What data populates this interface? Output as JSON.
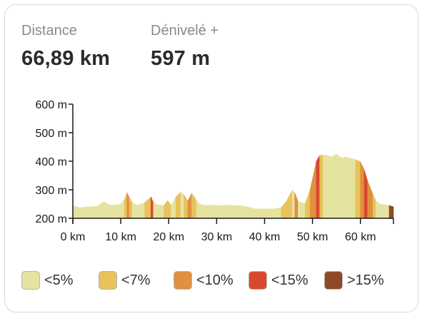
{
  "stats": {
    "distance_label": "Distance",
    "distance_value": "66,89 km",
    "elevation_gain_label": "Dénivelé +",
    "elevation_gain_value": "597 m"
  },
  "legend": [
    {
      "label": "<5%",
      "color": "#e6e3a1"
    },
    {
      "label": "<7%",
      "color": "#e8c25a"
    },
    {
      "label": "<10%",
      "color": "#e0903e"
    },
    {
      "label": "<15%",
      "color": "#d9482e"
    },
    {
      "label": ">15%",
      "color": "#8e4a26"
    }
  ],
  "chart_data": {
    "type": "area",
    "xlabel": "",
    "ylabel": "",
    "xlim": [
      0,
      66.89
    ],
    "ylim": [
      200,
      600
    ],
    "x_ticks": [
      0,
      10,
      20,
      30,
      40,
      50,
      60
    ],
    "x_tick_labels": [
      "0 km",
      "10 km",
      "20 km",
      "30 km",
      "40 km",
      "50 km",
      "60 km"
    ],
    "y_ticks": [
      200,
      300,
      400,
      500,
      600
    ],
    "y_tick_labels": [
      "200 m",
      "300 m",
      "400 m",
      "500 m",
      "600 m"
    ],
    "grid": false,
    "series": [
      {
        "x": [
          0,
          1.5,
          3,
          5,
          6.5,
          7.5,
          8.5,
          10,
          10.8,
          11.3,
          11.8,
          12.4,
          13.5,
          15,
          16.3,
          16.8,
          17.5,
          19,
          19.8,
          20.5,
          21.5,
          22.5,
          23.2,
          24,
          24.8,
          25.8,
          26.5,
          27.5,
          29,
          31,
          33,
          35,
          36.5,
          38,
          40,
          42,
          43.5,
          44.5,
          45.2,
          45.8,
          46.3,
          47,
          48.5,
          49.5,
          50.3,
          50.8,
          51.5,
          52.2,
          53,
          54,
          55,
          56,
          57,
          58,
          59,
          60,
          60.8,
          61.5,
          62,
          62.6,
          63.2,
          64,
          65,
          66,
          66.89
        ],
        "y": [
          245,
          237,
          240,
          242,
          258,
          248,
          246,
          250,
          268,
          290,
          272,
          255,
          245,
          255,
          275,
          255,
          248,
          245,
          262,
          245,
          275,
          292,
          282,
          260,
          288,
          262,
          250,
          245,
          246,
          245,
          246,
          244,
          240,
          233,
          233,
          233,
          238,
          258,
          280,
          298,
          290,
          258,
          252,
          300,
          360,
          400,
          420,
          422,
          420,
          415,
          425,
          412,
          415,
          410,
          405,
          398,
          370,
          330,
          310,
          285,
          262,
          250,
          248,
          245,
          240
        ],
        "grade_class": [
          "<5%",
          "<5%",
          "<5%",
          "<5%",
          "<5%",
          "<5%",
          "<5%",
          "<5%",
          "<7%",
          "<10%",
          "<7%",
          "<5%",
          "<5%",
          "<7%",
          "<15%",
          "<5%",
          "<5%",
          "<7%",
          "<7%",
          "<5%",
          "<7%",
          "<5%",
          "<7%",
          "<10%",
          "<7%",
          "<5%",
          "<5%",
          "<5%",
          "<5%",
          "<5%",
          "<5%",
          "<5%",
          "<5%",
          "<5%",
          "<5%",
          "<5%",
          "<7%",
          "<7%",
          "<7%",
          "<5%",
          "<10%",
          "<5%",
          "<7%",
          "<10%",
          "<10%",
          "<15%",
          "<7%",
          "<5%",
          "<5%",
          "<5%",
          "<5%",
          "<5%",
          "<5%",
          "<5%",
          "<7%",
          "<10%",
          "<15%",
          "<10%",
          "<10%",
          "<7%",
          "<5%",
          "<5%",
          "<5%",
          ">15%"
        ]
      }
    ]
  }
}
